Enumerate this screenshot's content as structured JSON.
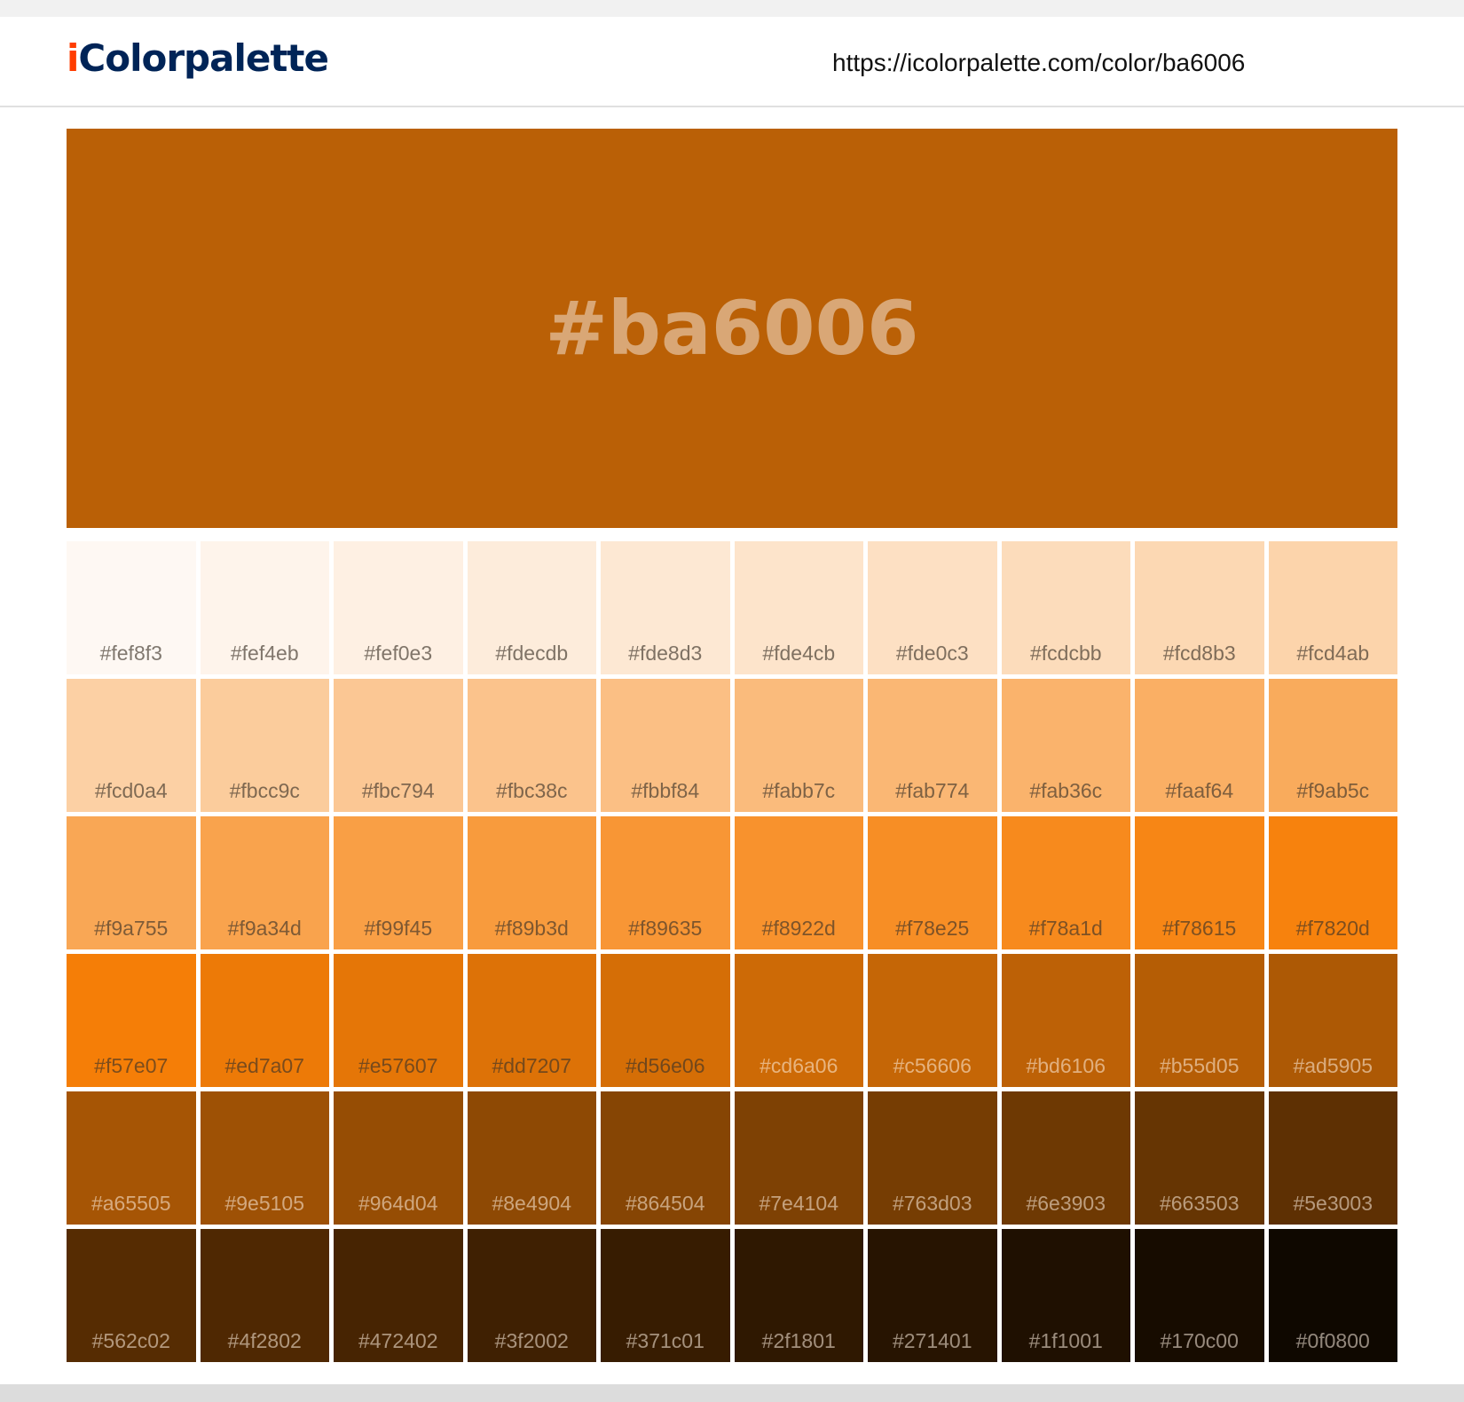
{
  "header": {
    "logo_i": "i",
    "logo_rest": "Colorpalette",
    "url": "https://icolorpalette.com/color/ba6006"
  },
  "hero": {
    "label": "#ba6006",
    "color": "#ba6006"
  },
  "swatches": [
    "#fef8f3",
    "#fef4eb",
    "#fef0e3",
    "#fdecdb",
    "#fde8d3",
    "#fde4cb",
    "#fde0c3",
    "#fcdcbb",
    "#fcd8b3",
    "#fcd4ab",
    "#fcd0a4",
    "#fbcc9c",
    "#fbc794",
    "#fbc38c",
    "#fbbf84",
    "#fabb7c",
    "#fab774",
    "#fab36c",
    "#faaf64",
    "#f9ab5c",
    "#f9a755",
    "#f9a34d",
    "#f99f45",
    "#f89b3d",
    "#f89635",
    "#f8922d",
    "#f78e25",
    "#f78a1d",
    "#f78615",
    "#f7820d",
    "#f57e07",
    "#ed7a07",
    "#e57607",
    "#dd7207",
    "#d56e06",
    "#cd6a06",
    "#c56606",
    "#bd6106",
    "#b55d05",
    "#ad5905",
    "#a65505",
    "#9e5105",
    "#964d04",
    "#8e4904",
    "#864504",
    "#7e4104",
    "#763d03",
    "#6e3903",
    "#663503",
    "#5e3003",
    "#562c02",
    "#4f2802",
    "#472402",
    "#3f2002",
    "#371c01",
    "#2f1801",
    "#271401",
    "#1f1001",
    "#170c00",
    "#0f0800"
  ]
}
